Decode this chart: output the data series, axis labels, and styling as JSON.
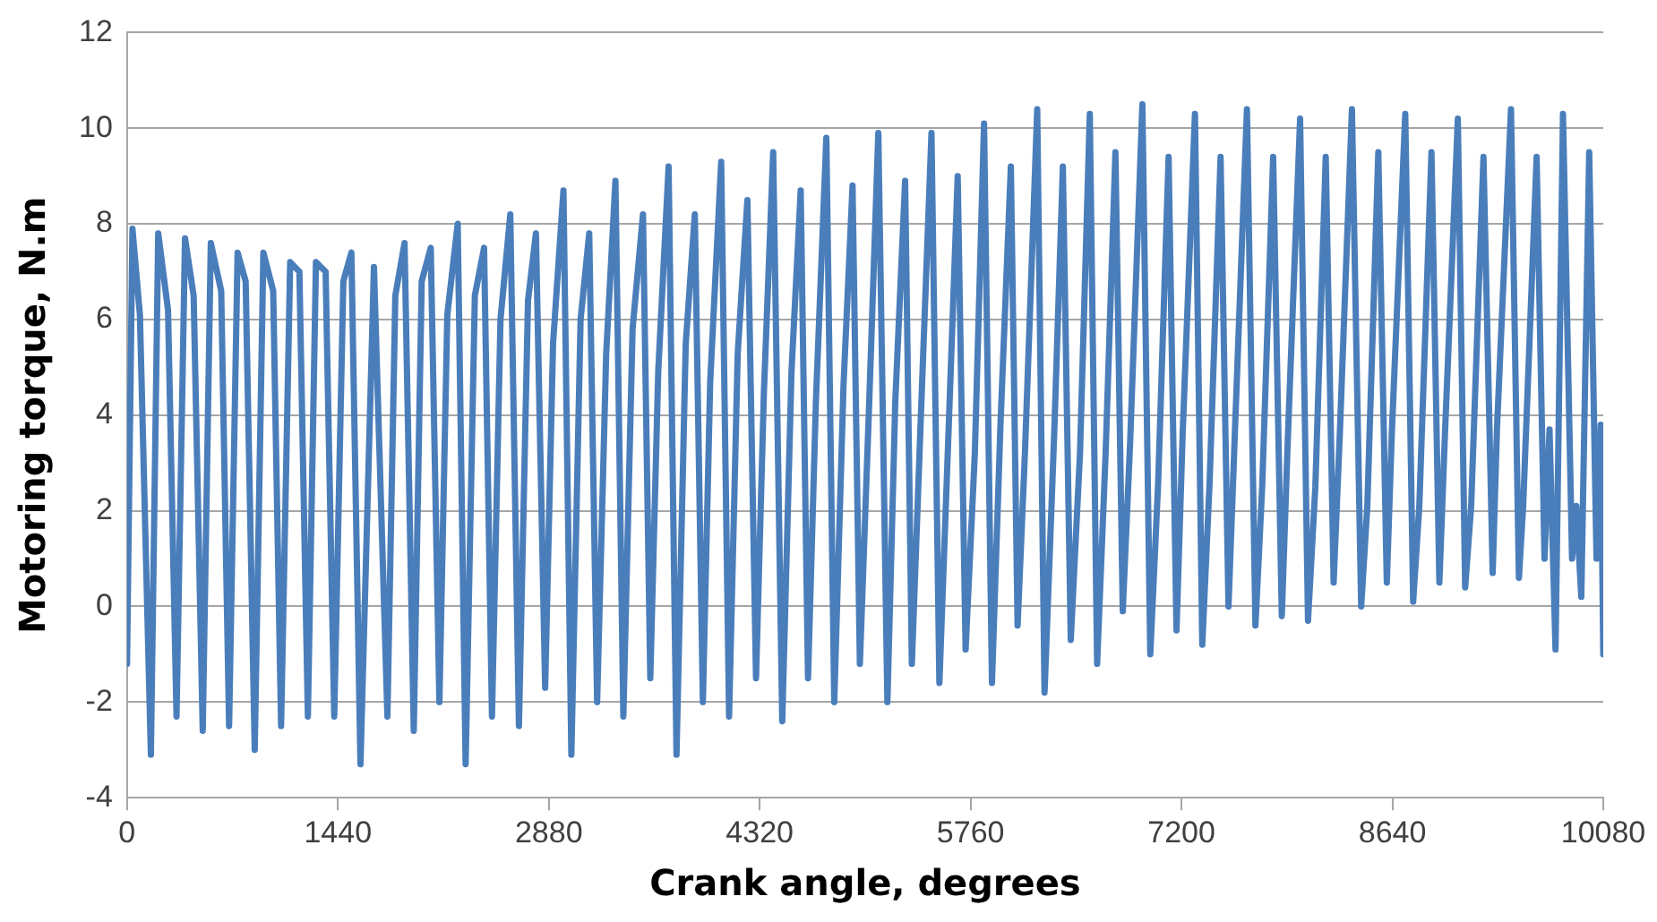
{
  "chart_data": {
    "type": "line",
    "xlabel": "Crank angle, degrees",
    "ylabel": "Motoring torque, N.m",
    "xlim": [
      0,
      10080
    ],
    "xticks": [
      0,
      1440,
      2880,
      4320,
      5760,
      7200,
      8640,
      10080
    ],
    "ylim": [
      -4,
      12
    ],
    "yticks": [
      -4,
      -2,
      0,
      2,
      4,
      6,
      8,
      10,
      12
    ],
    "grid": "y",
    "marker": "none",
    "line_style": "solid",
    "series": [
      {
        "color": "#4a7ebb",
        "x": [
          0,
          37,
          88,
          163,
          213,
          280,
          338,
          396,
          455,
          517,
          572,
          643,
          697,
          755,
          810,
          872,
          931,
          998,
          1052,
          1114,
          1177,
          1235,
          1290,
          1356,
          1415,
          1477,
          1532,
          1594,
          1686,
          1778,
          1832,
          1895,
          1958,
          2012,
          2074,
          2133,
          2187,
          2258,
          2312,
          2375,
          2438,
          2492,
          2550,
          2617,
          2676,
          2738,
          2792,
          2855,
          2909,
          2980,
          3034,
          3097,
          3156,
          3210,
          3272,
          3335,
          3389,
          3452,
          3523,
          3573,
          3627,
          3698,
          3752,
          3815,
          3877,
          3932,
          3982,
          4057,
          4111,
          4170,
          4236,
          4295,
          4349,
          4412,
          4474,
          4537,
          4600,
          4650,
          4704,
          4775,
          4829,
          4892,
          4954,
          5004,
          5067,
          5130,
          5192,
          5246,
          5313,
          5359,
          5422,
          5493,
          5547,
          5610,
          5672,
          5726,
          5789,
          5852,
          5906,
          5964,
          6035,
          6081,
          6131,
          6215,
          6265,
          6332,
          6390,
          6444,
          6507,
          6574,
          6624,
          6682,
          6749,
          6799,
          6849,
          6933,
          6987,
          7041,
          7112,
          7166,
          7208,
          7292,
          7342,
          7392,
          7467,
          7521,
          7563,
          7647,
          7705,
          7751,
          7826,
          7885,
          7926,
          8010,
          8064,
          8114,
          8185,
          8239,
          8281,
          8364,
          8427,
          8469,
          8544,
          8602,
          8636,
          8728,
          8782,
          8824,
          8907,
          8961,
          8999,
          9087,
          9137,
          9178,
          9262,
          9325,
          9354,
          9450,
          9504,
          9533,
          9625,
          9679,
          9713,
          9754,
          9805,
          9867,
          9896,
          9930,
          9984,
          10034,
          10063,
          10080
        ],
        "values": [
          -1.2,
          7.9,
          6.1,
          -3.1,
          7.8,
          6.2,
          -2.3,
          7.7,
          6.5,
          -2.6,
          7.6,
          6.6,
          -2.5,
          7.4,
          6.8,
          -3.0,
          7.4,
          6.6,
          -2.5,
          7.2,
          7.0,
          -2.3,
          7.2,
          7.0,
          -2.3,
          6.8,
          7.4,
          -3.3,
          7.1,
          -2.3,
          6.5,
          7.6,
          -2.6,
          6.8,
          7.5,
          -2.0,
          6.1,
          8.0,
          -3.3,
          6.5,
          7.5,
          -2.3,
          6.0,
          8.2,
          -2.5,
          6.4,
          7.8,
          -1.7,
          5.5,
          8.7,
          -3.1,
          6.0,
          7.8,
          -2.0,
          5.3,
          8.9,
          -2.3,
          5.8,
          8.2,
          -1.5,
          4.9,
          9.2,
          -3.1,
          5.5,
          8.2,
          -2.0,
          4.7,
          9.3,
          -2.3,
          5.3,
          8.5,
          -1.5,
          4.5,
          9.5,
          -2.4,
          4.9,
          8.7,
          -1.5,
          4.3,
          9.8,
          -2.0,
          4.6,
          8.8,
          -1.2,
          4.2,
          9.9,
          -2.0,
          4.3,
          8.9,
          -1.2,
          4.1,
          9.9,
          -1.6,
          3.7,
          9.0,
          -0.9,
          3.2,
          10.1,
          -1.6,
          3.8,
          9.2,
          -0.4,
          3.2,
          10.4,
          -1.8,
          3.7,
          9.2,
          -0.7,
          3.2,
          10.3,
          -1.2,
          3.2,
          9.5,
          -0.1,
          3.4,
          10.5,
          -1.0,
          2.6,
          9.4,
          -0.5,
          3.6,
          10.3,
          -0.8,
          2.6,
          9.4,
          0,
          3.5,
          10.4,
          -0.4,
          2.5,
          9.4,
          -0.2,
          3.5,
          10.2,
          -0.3,
          2.5,
          9.4,
          0.5,
          3.6,
          10.4,
          0,
          2.1,
          9.5,
          0.5,
          3.6,
          10.3,
          0.1,
          2.1,
          9.5,
          0.5,
          3.6,
          10.2,
          0.4,
          2.1,
          9.4,
          0.7,
          3.7,
          10.4,
          0.6,
          2.1,
          9.4,
          1.0,
          3.7,
          -0.9,
          10.3,
          1.0,
          2.1,
          0.2,
          9.5,
          1.0,
          3.8,
          -1.0
        ]
      }
    ]
  }
}
